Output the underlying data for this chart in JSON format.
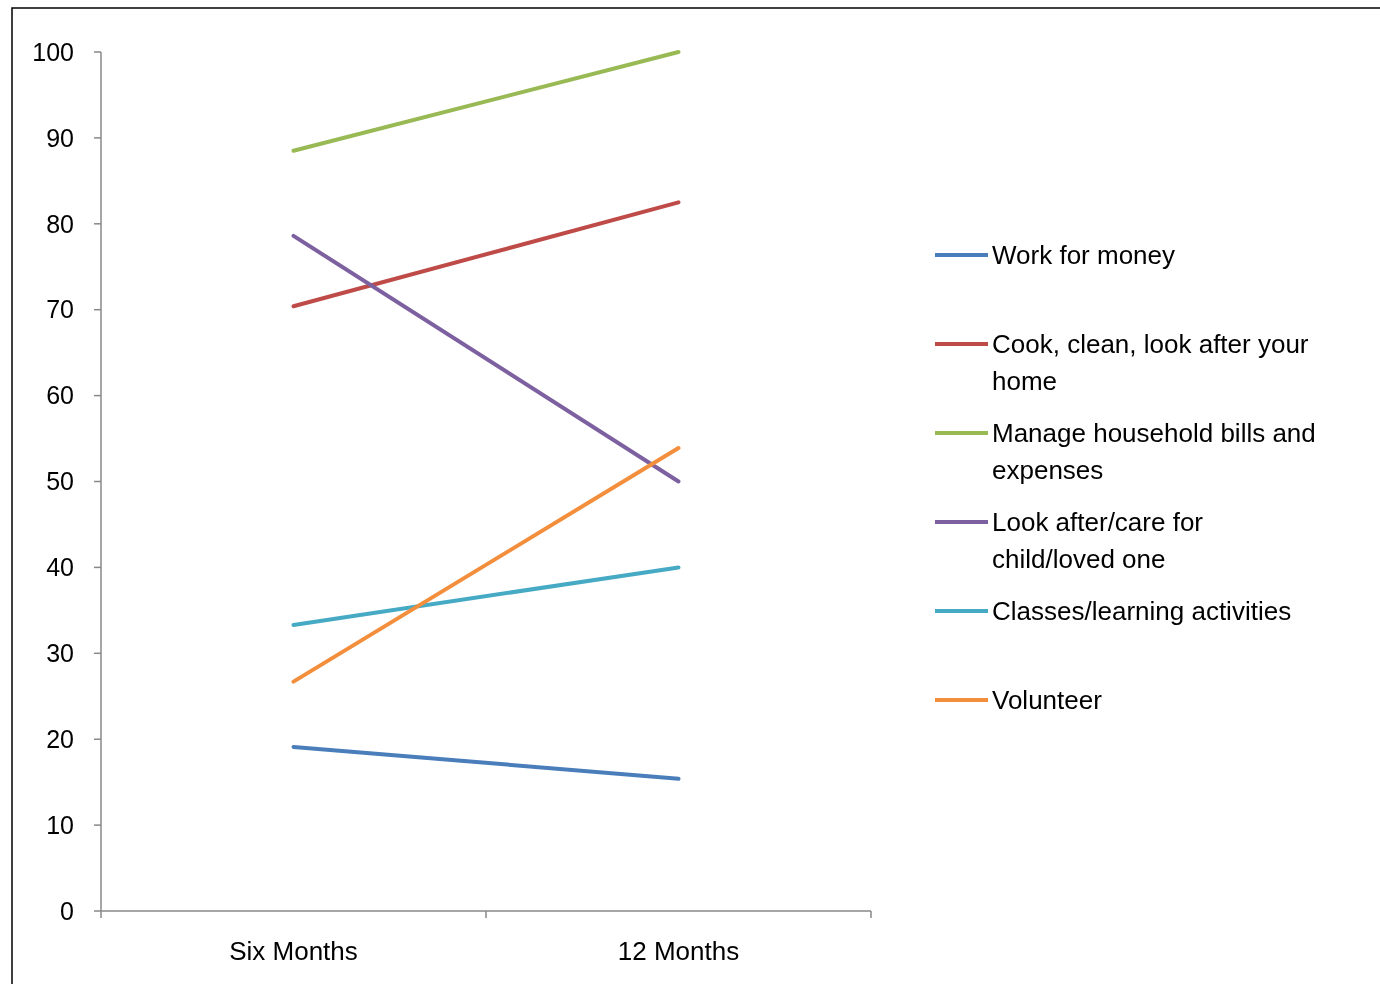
{
  "chart_data": {
    "type": "line",
    "categories": [
      "Six Months",
      "12 Months"
    ],
    "series": [
      {
        "name": "Work for money",
        "color": "#4a7ebb",
        "values": [
          19.1,
          15.4
        ]
      },
      {
        "name": "Cook, clean, look after your home",
        "color": "#be4b48",
        "values": [
          70.4,
          82.5
        ]
      },
      {
        "name": "Manage household bills and expenses",
        "color": "#98b954",
        "values": [
          88.5,
          100
        ]
      },
      {
        "name": "Look after/care for child/loved one",
        "color": "#7d60a0",
        "values": [
          78.6,
          50
        ]
      },
      {
        "name": "Classes/learning activities",
        "color": "#46aac5",
        "values": [
          33.3,
          40
        ]
      },
      {
        "name": "Volunteer",
        "color": "#f38e3c",
        "values": [
          26.7,
          53.9
        ]
      }
    ],
    "ylim": [
      0,
      100
    ],
    "yticks": [
      0,
      10,
      20,
      30,
      40,
      50,
      60,
      70,
      80,
      90,
      100
    ],
    "legend": "right",
    "grid": false,
    "line_style": "solid"
  }
}
